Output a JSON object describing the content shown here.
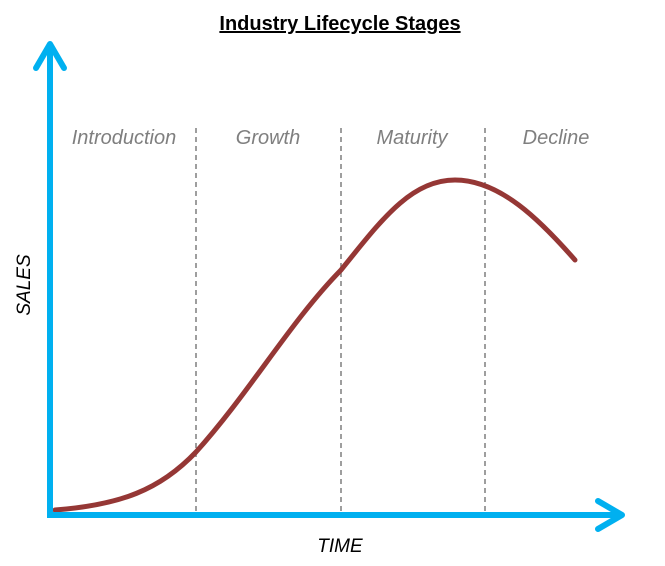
{
  "title": "Industry Lifecycle Stages",
  "stages": [
    "Introduction",
    "Growth",
    "Maturity",
    "Decline"
  ],
  "axes": {
    "y": "SALES",
    "x": "TIME"
  }
}
